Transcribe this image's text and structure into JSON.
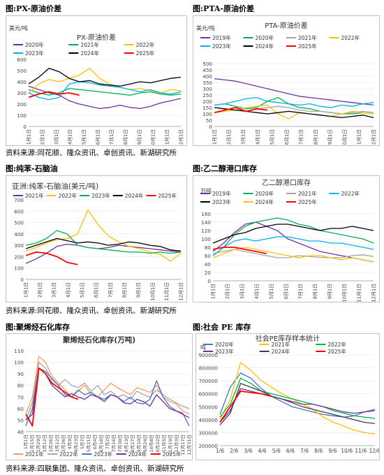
{
  "labels": {
    "fig1": "图:PX-原油价差",
    "fig2": "图:PTA-原油价差",
    "fig3": "图:纯苯-石脑油",
    "fig4": "图:乙二醇港口库存",
    "fig5": "图:聚烯烃石化库存",
    "fig6": "图:社会 PE 库存",
    "source1": "资料来源:同花顺、隆众资讯、卓创资讯、新湖研究所",
    "source2": "资料来源:同花顺、隆众资讯、卓创资讯、新湖研究所",
    "source3": "资料来源:四联集团、隆众资讯、卓创资讯、新湖研究所"
  },
  "colors": {
    "2019": "#7030a0",
    "2020": "#00b050",
    "2021": "#a6a6a6",
    "2022": "#ffc000",
    "2023": "#00b0f0",
    "2024": "#000000",
    "2025": "#ff0000"
  },
  "chart_data": [
    {
      "id": "px",
      "type": "line",
      "title": "PX-原油价差",
      "ylabel": "美元/吨",
      "ylim": [
        0,
        600
      ],
      "yticks": [
        0,
        100,
        200,
        300,
        400,
        500,
        600
      ],
      "xticks": [
        "1月1日",
        "2月1日",
        "3月1日",
        "4月1日",
        "5月1日",
        "6月1日",
        "7月1日",
        "8月1日",
        "9月1日",
        "10月1日",
        "11月1日",
        "12月1日"
      ],
      "legend": [
        "2020年",
        "2021年",
        "2022年",
        "2023年",
        "2024年",
        "2025年"
      ],
      "legend_position": "top",
      "series": [
        {
          "name": "2020年",
          "color": "#7030a0",
          "values": [
            360,
            330,
            300,
            280,
            230,
            200,
            180,
            160,
            170,
            190,
            170,
            160,
            180,
            210,
            230,
            250
          ]
        },
        {
          "name": "2021年",
          "color": "#00b050",
          "values": [
            330,
            300,
            280,
            300,
            340,
            330,
            320,
            310,
            300,
            290,
            280,
            300,
            310,
            290,
            280,
            290
          ]
        },
        {
          "name": "2022年",
          "color": "#ffc000",
          "values": [
            300,
            380,
            420,
            400,
            430,
            460,
            520,
            430,
            380,
            350,
            330,
            340,
            320,
            300,
            330,
            320
          ]
        },
        {
          "name": "2023年",
          "color": "#00b0f0",
          "values": [
            300,
            260,
            240,
            260,
            380,
            400,
            390,
            370,
            360,
            350,
            330,
            310,
            330,
            300,
            290,
            310
          ]
        },
        {
          "name": "2024年",
          "color": "#000000",
          "values": [
            380,
            440,
            520,
            490,
            430,
            400,
            410,
            380,
            370,
            360,
            380,
            400,
            390,
            410,
            430,
            440
          ]
        },
        {
          "name": "2025年",
          "color": "#ff0000",
          "values": [
            260,
            290,
            310,
            290,
            300,
            280
          ]
        }
      ]
    },
    {
      "id": "pta",
      "type": "line",
      "title": "PTA-原油价差",
      "ylabel": "美元/吨",
      "ylim": [
        0,
        500
      ],
      "yticks": [
        0,
        50,
        100,
        150,
        200,
        250,
        300,
        350,
        400,
        450,
        500
      ],
      "xticks": [
        "1月1日",
        "2月1日",
        "3月1日",
        "4月1日",
        "5月1日",
        "6月1日",
        "7月1日",
        "8月1日",
        "9月1日",
        "10月1日",
        "11月1日",
        "12月1日"
      ],
      "legend": [
        "2019年",
        "2020年",
        "2021年",
        "2022年",
        "2023年",
        "2024年",
        "2025年"
      ],
      "legend_position": "top",
      "series": [
        {
          "name": "2019年",
          "color": "#7030a0",
          "values": [
            380,
            370,
            360,
            340,
            320,
            300,
            280,
            260,
            240,
            230,
            220,
            210,
            200,
            190,
            180,
            170
          ]
        },
        {
          "name": "2020年",
          "color": "#00b050",
          "values": [
            170,
            180,
            160,
            140,
            150,
            200,
            230,
            180,
            150,
            140,
            120,
            110,
            100,
            100,
            110,
            100
          ]
        },
        {
          "name": "2021年",
          "color": "#a6a6a6",
          "values": [
            150,
            140,
            130,
            120,
            140,
            150,
            160,
            150,
            130,
            120,
            120,
            110,
            100,
            110,
            120,
            110
          ]
        },
        {
          "name": "2022年",
          "color": "#ffc000",
          "values": [
            110,
            120,
            130,
            150,
            160,
            170,
            100,
            60,
            110,
            100,
            90,
            80,
            100,
            120,
            110,
            100
          ]
        },
        {
          "name": "2023年",
          "color": "#00b0f0",
          "values": [
            170,
            180,
            200,
            220,
            230,
            200,
            190,
            180,
            170,
            180,
            160,
            150,
            170,
            160,
            180,
            190
          ]
        },
        {
          "name": "2024年",
          "color": "#000000",
          "values": [
            150,
            140,
            130,
            120,
            110,
            100,
            110,
            120,
            110,
            100,
            90,
            80,
            70,
            80,
            90,
            70
          ]
        },
        {
          "name": "2025年",
          "color": "#ff0000",
          "values": [
            110,
            130,
            150,
            120,
            140,
            130
          ]
        }
      ]
    },
    {
      "id": "benzene",
      "type": "line",
      "title": "亚洲:纯苯-石脑油(美元/吨)",
      "ylim": [
        0,
        700
      ],
      "yticks": [
        0,
        100,
        200,
        300,
        400,
        500,
        600,
        700
      ],
      "xticks": [
        "1月1日",
        "2月1日",
        "3月1日",
        "4月1日",
        "5月1日",
        "6月1日",
        "7月1日",
        "8月1日",
        "9月1日",
        "10月1日",
        "11月1日",
        "12月1日"
      ],
      "legend": [
        "2021年",
        "2022年",
        "2023年",
        "2024年",
        "2025年"
      ],
      "legend_position": "top",
      "series": [
        {
          "name": "2021年",
          "color": "#7030a0",
          "values": [
            140,
            180,
            230,
            290,
            310,
            300,
            280,
            270,
            280,
            300,
            290,
            280,
            270,
            260,
            250,
            240
          ]
        },
        {
          "name": "2022年",
          "color": "#ffc000",
          "values": [
            250,
            280,
            320,
            350,
            360,
            400,
            610,
            480,
            380,
            330,
            290,
            270,
            240,
            220,
            160,
            230
          ]
        },
        {
          "name": "2023年",
          "color": "#00b050",
          "values": [
            300,
            320,
            360,
            430,
            400,
            300,
            280,
            270,
            260,
            250,
            240,
            240,
            230,
            240,
            230,
            240
          ]
        },
        {
          "name": "2024年",
          "color": "#000000",
          "values": [
            270,
            300,
            330,
            360,
            340,
            320,
            330,
            320,
            300,
            310,
            330,
            320,
            300,
            290,
            260,
            250
          ]
        },
        {
          "name": "2025年",
          "color": "#ff0000",
          "values": [
            210,
            240,
            230,
            200,
            150,
            130
          ]
        }
      ]
    },
    {
      "id": "meg",
      "type": "line",
      "title": "乙二醇港口库存",
      "ylabel": "万吨",
      "ylim": [
        0,
        160
      ],
      "yticks": [
        0,
        20,
        40,
        60,
        80,
        100,
        120,
        140,
        160
      ],
      "xticks": [
        "1月1日",
        "2月1日",
        "3月1日",
        "4月1日",
        "5月1日",
        "6月1日",
        "7月1日",
        "8月1日",
        "9月1日",
        "10月1日",
        "11月1日",
        "12月1日"
      ],
      "legend": [
        "2019年",
        "2020年",
        "2021年",
        "2022年",
        "2023年",
        "2024年",
        "2025年"
      ],
      "legend_position": "top",
      "series": [
        {
          "name": "2019年",
          "color": "#7030a0",
          "values": [
            70,
            90,
            115,
            135,
            140,
            130,
            120,
            100,
            90,
            80,
            70,
            65,
            60,
            55,
            50,
            45
          ]
        },
        {
          "name": "2020年",
          "color": "#00b050",
          "values": [
            60,
            80,
            110,
            130,
            140,
            145,
            150,
            145,
            135,
            130,
            120,
            115,
            110,
            105,
            100,
            90
          ]
        },
        {
          "name": "2021年",
          "color": "#a6a6a6",
          "values": [
            65,
            70,
            75,
            70,
            65,
            60,
            55,
            55,
            60,
            58,
            56,
            55,
            55,
            60,
            62,
            58
          ]
        },
        {
          "name": "2022年",
          "color": "#00b0f0",
          "values": [
            60,
            80,
            95,
            100,
            95,
            100,
            105,
            105,
            100,
            95,
            95,
            90,
            90,
            85,
            80,
            75
          ]
        },
        {
          "name": "2023年",
          "color": "#000000",
          "values": [
            90,
            100,
            110,
            115,
            125,
            130,
            135,
            135,
            130,
            125,
            120,
            125,
            125,
            130,
            125,
            120
          ]
        },
        {
          "name": "2024年",
          "color": "#ffc000",
          "values": [
            55,
            65,
            75,
            80,
            75,
            70,
            65,
            60,
            55,
            60,
            60,
            55,
            50,
            55,
            50,
            45
          ]
        },
        {
          "name": "2025年",
          "color": "#ff0000",
          "values": [
            75,
            80,
            80,
            75,
            70,
            65
          ]
        }
      ]
    },
    {
      "id": "polyolefin",
      "type": "line",
      "title": "聚烯烃石化库存(万吨)",
      "ylim": [
        40,
        110
      ],
      "yticks": [
        40,
        50,
        60,
        70,
        80,
        90,
        100,
        110
      ],
      "xticks": [
        "1月1日",
        "1月15日",
        "1月29日",
        "2月12日",
        "2月26日",
        "3月12日",
        "3月26日",
        "4月9日",
        "4月23日",
        "5月7日",
        "5月21日",
        "6月4日",
        "6月18日",
        "7月2日",
        "7月16日",
        "7月30日",
        "8月13日",
        "8月27日",
        "9月10日",
        "9月24日",
        "10月8日",
        "10月22日",
        "11月5日",
        "11月19日",
        "12月3日",
        "12月17日",
        "12月31日"
      ],
      "legend": [
        "2021年",
        "2022年",
        "2023年",
        "2024年",
        "2025年"
      ],
      "legend_position": "bottom",
      "series": [
        {
          "name": "2021年",
          "color": "#ff9966",
          "values": [
            55,
            70,
            105,
            100,
            88,
            82,
            76,
            70,
            75,
            80,
            72,
            70,
            76,
            82,
            78,
            75,
            72,
            78,
            76,
            74,
            80,
            70,
            66,
            64,
            58,
            55
          ]
        },
        {
          "name": "2022年",
          "color": "#a6a6a6",
          "values": [
            50,
            65,
            100,
            95,
            85,
            80,
            85,
            80,
            78,
            82,
            75,
            80,
            72,
            75,
            70,
            72,
            68,
            75,
            72,
            70,
            76,
            72,
            68,
            65,
            62,
            60
          ]
        },
        {
          "name": "2023年",
          "color": "#4472c4",
          "values": [
            45,
            60,
            95,
            92,
            86,
            80,
            72,
            70,
            76,
            72,
            74,
            70,
            68,
            72,
            70,
            66,
            70,
            65,
            64,
            68,
            84,
            70,
            62,
            58,
            56,
            45
          ]
        },
        {
          "name": "2024年",
          "color": "#7030a0",
          "values": [
            50,
            55,
            95,
            90,
            80,
            75,
            70,
            73,
            70,
            68,
            72,
            70,
            66,
            72,
            70,
            65,
            64,
            68,
            66,
            62,
            72,
            66,
            60,
            58,
            55,
            52
          ]
        },
        {
          "name": "2025年",
          "color": "#ff0000",
          "values": [
            55,
            45,
            95,
            90,
            82,
            78,
            74,
            70,
            68
          ]
        }
      ]
    },
    {
      "id": "pe",
      "type": "line",
      "title": "社会PE库存样本统计",
      "ylabel": "吨",
      "ylim": [
        200000,
        900000
      ],
      "yticks": [
        200000,
        300000,
        400000,
        500000,
        600000,
        700000,
        800000,
        900000
      ],
      "xticks": [
        "1/6",
        "2/6",
        "3/6",
        "4/6",
        "5/6",
        "6/6",
        "7/6",
        "8/6",
        "9/6",
        "10/6",
        "11/6",
        "12/6"
      ],
      "legend": [
        "2020年",
        "2021年",
        "2022年",
        "2023年",
        "2024年",
        "2025年"
      ],
      "legend_position": "top",
      "series": [
        {
          "name": "2020年",
          "color": "#4472c4",
          "values": [
            440000,
            650000,
            760000,
            720000,
            640000,
            580000,
            540000,
            500000,
            480000,
            460000,
            440000,
            430000,
            420000,
            430000,
            460000,
            480000
          ]
        },
        {
          "name": "2021年",
          "color": "#ffc000",
          "values": [
            400000,
            560000,
            840000,
            780000,
            700000,
            650000,
            600000,
            560000,
            520000,
            480000,
            420000,
            380000,
            350000,
            320000,
            300000,
            290000
          ]
        },
        {
          "name": "2022年",
          "color": "#00b050",
          "values": [
            420000,
            520000,
            720000,
            680000,
            620000,
            600000,
            580000,
            560000,
            540000,
            520000,
            500000,
            470000,
            450000,
            430000,
            420000,
            410000
          ]
        },
        {
          "name": "2023年",
          "color": "#7030a0",
          "values": [
            380000,
            470000,
            640000,
            620000,
            600000,
            580000,
            560000,
            540000,
            520000,
            520000,
            500000,
            480000,
            460000,
            450000,
            460000,
            470000
          ]
        },
        {
          "name": "2024年",
          "color": "#404040",
          "values": [
            360000,
            450000,
            680000,
            650000,
            620000,
            580000,
            560000,
            530000,
            500000,
            480000,
            460000,
            440000,
            420000,
            400000,
            380000,
            370000
          ]
        },
        {
          "name": "2025年",
          "color": "#ff0000",
          "values": [
            380000,
            500000,
            620000,
            610000,
            600000,
            580000
          ]
        }
      ]
    }
  ]
}
